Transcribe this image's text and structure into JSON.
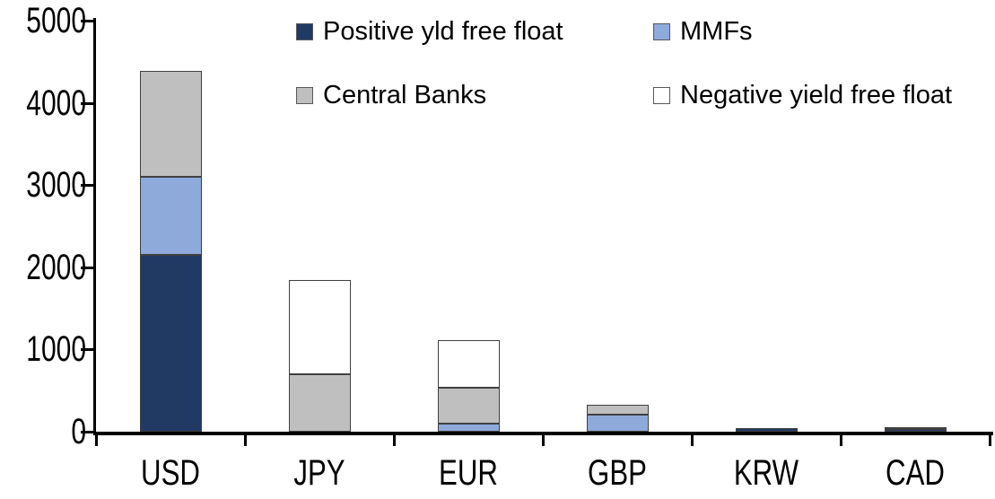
{
  "chart_data": {
    "type": "bar",
    "stacked": true,
    "title": "",
    "xlabel": "",
    "ylabel": "",
    "categories": [
      "USD",
      "JPY",
      "EUR",
      "GBP",
      "KRW",
      "CAD"
    ],
    "series": [
      {
        "name": "Positive yld free float",
        "color": "#213A64",
        "values": [
          2150,
          0,
          0,
          0,
          40,
          30
        ]
      },
      {
        "name": "MMFs",
        "color": "#8EAADB",
        "values": [
          950,
          0,
          100,
          210,
          0,
          0
        ]
      },
      {
        "name": "Central Banks",
        "color": "#BFBFBF",
        "values": [
          1290,
          700,
          440,
          120,
          0,
          30
        ]
      },
      {
        "name": "Negative yield free float",
        "color": "#FFFFFF",
        "values": [
          0,
          1140,
          570,
          0,
          0,
          0
        ]
      }
    ],
    "ylim": [
      0,
      5000
    ],
    "yticks": [
      0,
      1000,
      2000,
      3000,
      4000,
      5000
    ],
    "grid": false,
    "legend_position": "top",
    "legend_order_note": "two columns: row1 = Positive yld free float, MMFs; row2 = Central Banks, Negative yield free float",
    "axis_color": "#000000",
    "segment_border_color": "#404040"
  }
}
